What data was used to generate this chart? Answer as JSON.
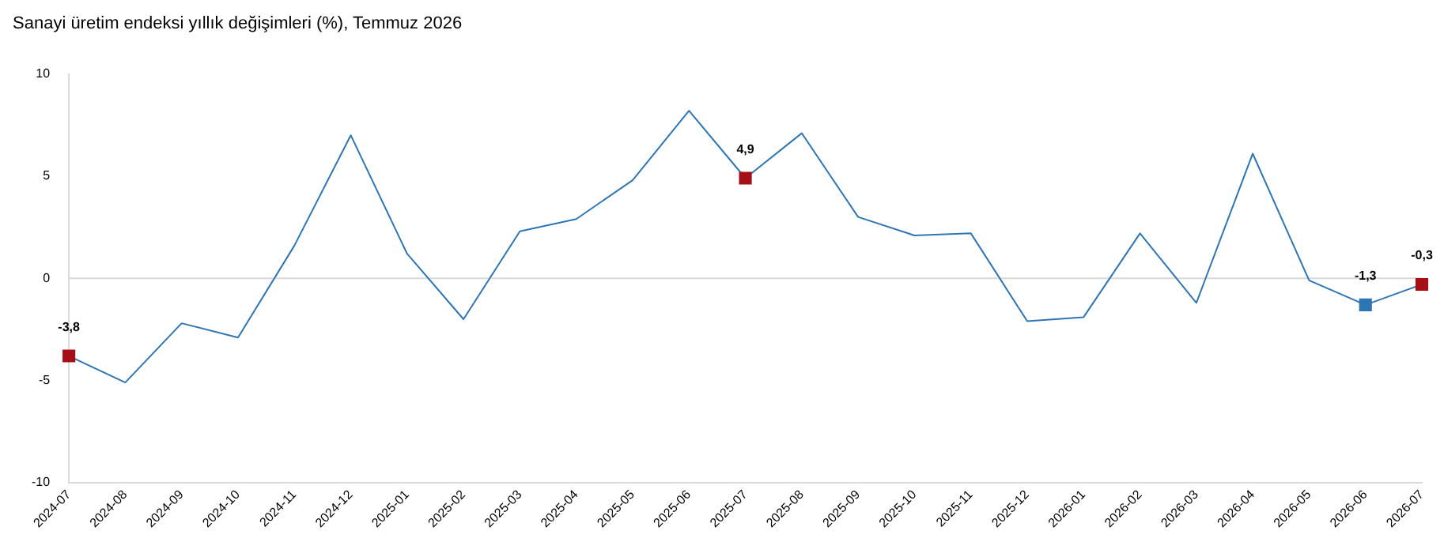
{
  "chart_data": {
    "type": "line",
    "title": "Sanayi üretim endeksi yıllık değişimleri (%), Temmuz 2026",
    "categories": [
      "2024-07",
      "2024-08",
      "2024-09",
      "2024-10",
      "2024-11",
      "2024-12",
      "2025-01",
      "2025-02",
      "2025-03",
      "2025-04",
      "2025-05",
      "2025-06",
      "2025-07",
      "2025-08",
      "2025-09",
      "2025-10",
      "2025-11",
      "2025-12",
      "2026-01",
      "2026-02",
      "2026-03",
      "2026-04",
      "2026-05",
      "2026-06",
      "2026-07"
    ],
    "series": [
      {
        "color": "#2e75b6",
        "marker": "none",
        "values": [
          -3.8,
          -5.1,
          -2.2,
          -2.9,
          1.6,
          7.0,
          1.2,
          -2.0,
          2.3,
          2.9,
          4.8,
          8.2,
          4.9,
          7.1,
          3.0,
          2.1,
          2.2,
          -2.1,
          -1.9,
          2.2,
          -1.2,
          6.1,
          -0.1,
          -1.3,
          -0.3
        ]
      },
      {
        "type": "scatter",
        "marker": "square",
        "color": "#a50f15",
        "values": [
          -3.8,
          null,
          null,
          null,
          null,
          null,
          null,
          null,
          null,
          null,
          null,
          null,
          4.9,
          null,
          null,
          null,
          null,
          null,
          null,
          null,
          null,
          null,
          null,
          null,
          -0.3
        ],
        "value_labels": [
          "-3,8",
          null,
          null,
          null,
          null,
          null,
          null,
          null,
          null,
          null,
          null,
          null,
          "4,9",
          null,
          null,
          null,
          null,
          null,
          null,
          null,
          null,
          null,
          null,
          null,
          "-0,3"
        ]
      },
      {
        "type": "scatter",
        "marker": "square",
        "color": "#2e75b6",
        "values": [
          null,
          null,
          null,
          null,
          null,
          null,
          null,
          null,
          null,
          null,
          null,
          null,
          null,
          null,
          null,
          null,
          null,
          null,
          null,
          null,
          null,
          null,
          null,
          -1.3,
          null
        ],
        "value_labels": [
          null,
          null,
          null,
          null,
          null,
          null,
          null,
          null,
          null,
          null,
          null,
          null,
          null,
          null,
          null,
          null,
          null,
          null,
          null,
          null,
          null,
          null,
          null,
          "-1,3",
          null
        ]
      }
    ],
    "ylim": [
      -10,
      10
    ],
    "yticks": [
      -10,
      -5,
      0,
      5,
      10
    ],
    "ref_lines": [
      {
        "axis": "y",
        "value": 0,
        "color": "#d9d9d9"
      }
    ],
    "legend": false
  }
}
